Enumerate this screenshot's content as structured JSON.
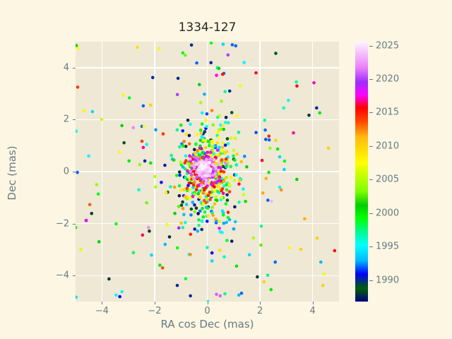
{
  "figure": {
    "background": "#fdf6e3",
    "axes_background": "#eee8d5",
    "grid_color": "#ffffff",
    "text_color": "#657b83",
    "title_color": "#262626"
  },
  "chart_data": {
    "type": "scatter",
    "title": "1334-127",
    "xlabel": "RA cos Dec (mas)",
    "ylabel": "Dec (mas)",
    "xlim": [
      -5,
      5
    ],
    "ylim": [
      -5,
      5
    ],
    "xticks": [
      -4,
      -2,
      0,
      2,
      4
    ],
    "yticks": [
      -4,
      -2,
      0,
      2,
      4
    ],
    "grid": true,
    "marker_diameter_px": 4.6,
    "legend": "none",
    "colorbar": {
      "position": "right",
      "min": 1986.8,
      "max": 2025.7,
      "ticks": [
        1990,
        1995,
        2000,
        2005,
        2010,
        2015,
        2020,
        2025
      ],
      "colormap": "gist_ncar",
      "stops": [
        [
          0.0,
          "#000080"
        ],
        [
          0.051,
          "#005f06"
        ],
        [
          0.106,
          "#0000ff"
        ],
        [
          0.157,
          "#00b8ff"
        ],
        [
          0.216,
          "#00ffff"
        ],
        [
          0.262,
          "#00fa9d"
        ],
        [
          0.322,
          "#00ff00"
        ],
        [
          0.369,
          "#00ce00"
        ],
        [
          0.424,
          "#80ff00"
        ],
        [
          0.533,
          "#ffff00"
        ],
        [
          0.631,
          "#ffba0e"
        ],
        [
          0.69,
          "#ff4700"
        ],
        [
          0.745,
          "#ff0000"
        ],
        [
          0.792,
          "#ff00ff"
        ],
        [
          0.843,
          "#9f2dff"
        ],
        [
          0.898,
          "#ec80fb"
        ],
        [
          1.0,
          "#fef8fe"
        ]
      ]
    },
    "points_format": [
      "ra_cos_dec_mas",
      "dec_mas",
      "epoch_year"
    ],
    "points": [
      [
        -4.97,
        4.85,
        2001
      ],
      [
        -4.9,
        4.75,
        2008
      ],
      [
        -0.6,
        4.87,
        1990
      ],
      [
        0.15,
        4.95,
        1999
      ],
      [
        0.6,
        4.9,
        1994
      ],
      [
        0.95,
        4.88,
        1992
      ],
      [
        1.08,
        4.84,
        1992
      ],
      [
        2.6,
        4.55,
        1989
      ],
      [
        0.14,
        4.19,
        1990
      ],
      [
        0.44,
        3.97,
        2001
      ],
      [
        0.63,
        3.78,
        1992
      ],
      [
        -1.83,
        4.73,
        2007
      ],
      [
        -0.93,
        4.57,
        1999
      ],
      [
        -0.84,
        4.48,
        2003
      ],
      [
        -0.4,
        4.18,
        1992
      ],
      [
        -1.11,
        3.59,
        1990
      ],
      [
        -2.07,
        3.62,
        1990
      ],
      [
        -4.92,
        3.25,
        2014
      ],
      [
        -3.19,
        2.94,
        2008
      ],
      [
        -4.69,
        2.34,
        2008
      ],
      [
        -4.36,
        2.31,
        1994
      ],
      [
        -2.43,
        2.53,
        1992
      ],
      [
        -2.15,
        2.56,
        2010
      ],
      [
        3.38,
        3.45,
        1997
      ],
      [
        4.05,
        3.42,
        2017
      ],
      [
        3.08,
        2.74,
        1995
      ],
      [
        2.9,
        2.45,
        1996
      ],
      [
        3.86,
        2.17,
        1988
      ],
      [
        4.27,
        2.26,
        2000
      ],
      [
        4.15,
        2.45,
        1990
      ],
      [
        1.4,
        4.2,
        1995
      ],
      [
        1.85,
        3.8,
        2016
      ],
      [
        -0.3,
        3.35,
        2001
      ],
      [
        0.85,
        3.1,
        1990
      ],
      [
        1.25,
        3.3,
        2007
      ],
      [
        -3.24,
        1.77,
        2001
      ],
      [
        -2.81,
        1.69,
        2022
      ],
      [
        -2.48,
        1.74,
        1992
      ],
      [
        -3.16,
        1.11,
        1989
      ],
      [
        -2.43,
        0.93,
        2017
      ],
      [
        -2.48,
        1.17,
        2014
      ],
      [
        -3.33,
        0.74,
        2008
      ],
      [
        -2.97,
        0.41,
        2000
      ],
      [
        -2.37,
        0.41,
        1990
      ],
      [
        -2.15,
        0.33,
        2000
      ],
      [
        -4.93,
        -0.03,
        1992
      ],
      [
        -4.5,
        0.6,
        1995
      ],
      [
        -4.2,
        -0.5,
        2004
      ],
      [
        -2.6,
        -0.7,
        1996
      ],
      [
        -2.3,
        -1.2,
        2003
      ],
      [
        2.2,
        1.6,
        1992
      ],
      [
        3.27,
        1.49,
        2017
      ],
      [
        2.6,
        1.2,
        2010
      ],
      [
        2.35,
        1.22,
        1992
      ],
      [
        2.38,
        0.9,
        2004
      ],
      [
        2.67,
        0.87,
        2000
      ],
      [
        2.92,
        0.08,
        1994
      ],
      [
        2.08,
        0.43,
        2016
      ],
      [
        2.75,
        -0.6,
        1995
      ],
      [
        3.4,
        -0.3,
        2001
      ],
      [
        2.3,
        -1.1,
        1992
      ],
      [
        4.6,
        0.9,
        2010
      ],
      [
        -4.39,
        -1.61,
        1988
      ],
      [
        -4.6,
        -1.88,
        1988
      ],
      [
        -5.0,
        -2.15,
        2000
      ],
      [
        -3.46,
        -2.01,
        1999
      ],
      [
        -4.11,
        -2.7,
        2001
      ],
      [
        -2.23,
        -2.15,
        2022
      ],
      [
        -2.2,
        -2.29,
        1988
      ],
      [
        -1.52,
        -2.04,
        2007
      ],
      [
        -2.12,
        -3.21,
        1994
      ],
      [
        -3.73,
        -4.13,
        1988
      ],
      [
        -3.24,
        -4.62,
        1995
      ],
      [
        -3.32,
        -4.81,
        1991
      ],
      [
        -1.14,
        -4.38,
        1990
      ],
      [
        -3.46,
        -4.75,
        1995
      ],
      [
        -4.98,
        -4.83,
        1994
      ],
      [
        -1.8,
        -3.6,
        2000
      ],
      [
        -1.6,
        -2.8,
        1993
      ],
      [
        -0.64,
        -4.78,
        1990
      ],
      [
        0.03,
        -5.0,
        1995
      ],
      [
        0.35,
        -4.72,
        2021
      ],
      [
        0.67,
        -4.7,
        1997
      ],
      [
        1.3,
        -4.68,
        1992
      ],
      [
        1.2,
        -4.75,
        1993
      ],
      [
        0.49,
        -4.78,
        2021
      ],
      [
        1.9,
        -4.05,
        1988
      ],
      [
        2.15,
        -4.24,
        2010
      ],
      [
        2.42,
        -4.54,
        2000
      ],
      [
        2.58,
        -3.48,
        1992
      ],
      [
        3.12,
        -2.93,
        2008
      ],
      [
        3.55,
        -2.99,
        2010
      ],
      [
        4.31,
        -3.48,
        1993
      ],
      [
        4.44,
        -3.94,
        2007
      ],
      [
        4.39,
        -4.38,
        2010
      ],
      [
        4.17,
        -2.56,
        2010
      ],
      [
        1.75,
        -2.55,
        2005
      ],
      [
        2.05,
        -2.1,
        1997
      ],
      [
        1.6,
        -3.2,
        1994
      ]
    ],
    "clusters": [
      {
        "n": 150,
        "cx": 0.05,
        "cy": -0.55,
        "sx": 0.7,
        "sy": 1.45,
        "epoch_min": 1987,
        "epoch_max": 2000,
        "seed": 101
      },
      {
        "n": 190,
        "cx": 0.05,
        "cy": 0.15,
        "sx": 0.62,
        "sy": 1.0,
        "epoch_min": 1993,
        "epoch_max": 2012,
        "seed": 202
      },
      {
        "n": 150,
        "cx": 0.0,
        "cy": -0.05,
        "sx": 0.45,
        "sy": 0.6,
        "epoch_min": 2006,
        "epoch_max": 2019,
        "seed": 303
      },
      {
        "n": 150,
        "cx": -0.08,
        "cy": 0.1,
        "sx": 0.26,
        "sy": 0.32,
        "epoch_min": 2013,
        "epoch_max": 2024,
        "seed": 404
      },
      {
        "n": 110,
        "cx": -0.12,
        "cy": 0.14,
        "sx": 0.13,
        "sy": 0.17,
        "epoch_min": 2020.5,
        "epoch_max": 2025.7,
        "seed": 505
      },
      {
        "n": 70,
        "cx": 0.0,
        "cy": 0.0,
        "sx": 2.3,
        "sy": 2.3,
        "epoch_min": 1987,
        "epoch_max": 2025.5,
        "seed": 606
      }
    ]
  }
}
